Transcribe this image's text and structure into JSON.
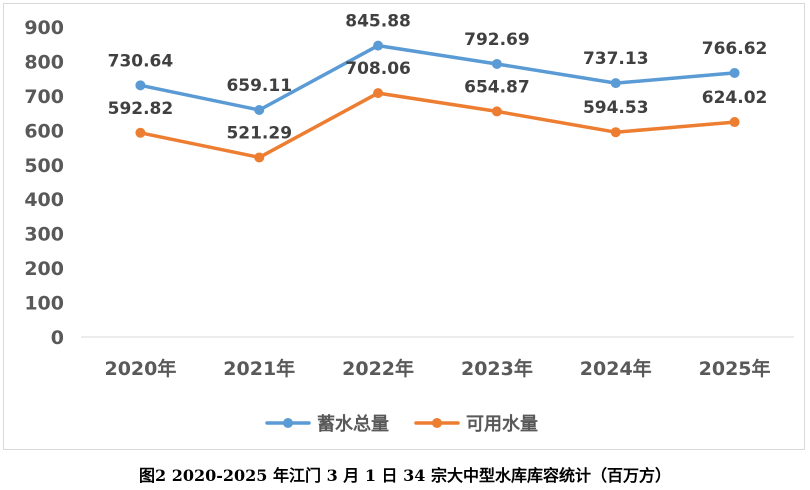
{
  "caption": "图2 2020-2025 年江门 3 月 1 日 34 宗大中型水库库容统计（百万方）",
  "chart_data": {
    "type": "line",
    "categories": [
      "2020年",
      "2021年",
      "2022年",
      "2023年",
      "2024年",
      "2025年"
    ],
    "series": [
      {
        "name": "蓄水总量",
        "values": [
          730.64,
          659.11,
          845.88,
          792.69,
          737.13,
          766.62
        ],
        "color": "#5b9bd5",
        "labels": [
          "730.64",
          "659.11",
          "845.88",
          "792.69",
          "737.13",
          "766.62"
        ]
      },
      {
        "name": "可用水量",
        "values": [
          592.82,
          521.29,
          708.06,
          654.87,
          594.53,
          624.02
        ],
        "color": "#ed7d31",
        "labels": [
          "592.82",
          "521.29",
          "708.06",
          "654.87",
          "594.53",
          "624.02"
        ]
      }
    ],
    "title": "",
    "xlabel": "",
    "ylabel": "",
    "ylim": [
      0,
      900
    ],
    "yticks": [
      "0",
      "100",
      "200",
      "300",
      "400",
      "500",
      "600",
      "700",
      "800",
      "900"
    ],
    "grid": false,
    "legend": "bottom"
  }
}
